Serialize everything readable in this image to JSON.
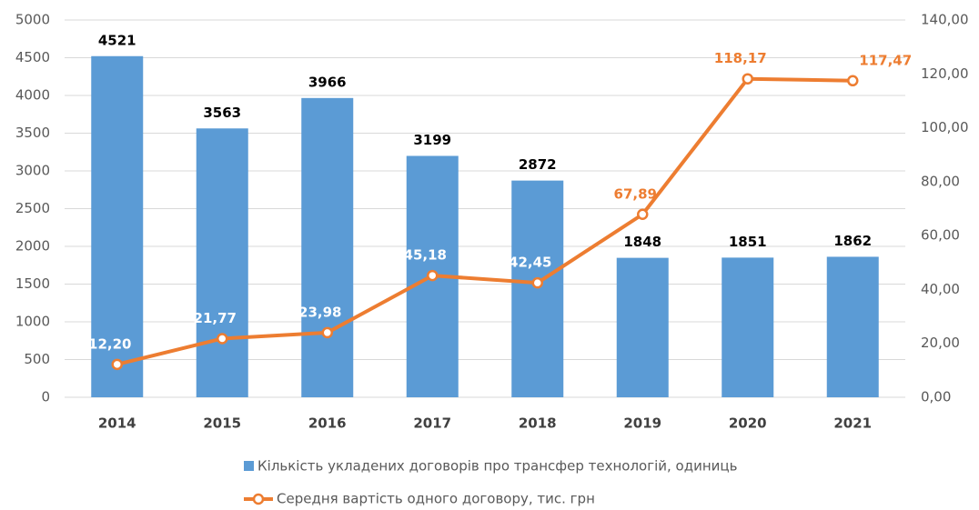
{
  "chart_data": {
    "type": "bar-line",
    "categories": [
      "2014",
      "2015",
      "2016",
      "2017",
      "2018",
      "2019",
      "2020",
      "2021"
    ],
    "series": [
      {
        "name": "Кількість укладених договорів про трансфер технологій, одиниць",
        "type": "bar",
        "color": "#5b9bd5",
        "values": [
          4521,
          3563,
          3966,
          3199,
          2872,
          1848,
          1851,
          1862
        ]
      },
      {
        "name": "Середня вартість одного договору, тис. грн",
        "type": "line",
        "axis": "y2",
        "color": "#ed7d31",
        "values": [
          12.2,
          21.77,
          23.98,
          45.18,
          42.45,
          67.89,
          118.17,
          117.47
        ],
        "value_labels": [
          "12,20",
          "21,77",
          "23,98",
          "45,18",
          "42,45",
          "67,89",
          "118,17",
          "117,47"
        ]
      }
    ],
    "ylim": [
      0,
      5000
    ],
    "yticks": [
      0,
      500,
      1000,
      1500,
      2000,
      2500,
      3000,
      3500,
      4000,
      4500,
      5000
    ],
    "y2lim": [
      0,
      140
    ],
    "y2ticks": [
      {
        "value": 0,
        "label": "0,00"
      },
      {
        "value": 20,
        "label": "20,00"
      },
      {
        "value": 40,
        "label": "40,00"
      },
      {
        "value": 60,
        "label": "60,00"
      },
      {
        "value": 80,
        "label": "80,00"
      },
      {
        "value": 100,
        "label": "100,00"
      },
      {
        "value": 120,
        "label": "120,00"
      },
      {
        "value": 140,
        "label": "140,00"
      }
    ],
    "grid": true,
    "legend": "bottom"
  }
}
